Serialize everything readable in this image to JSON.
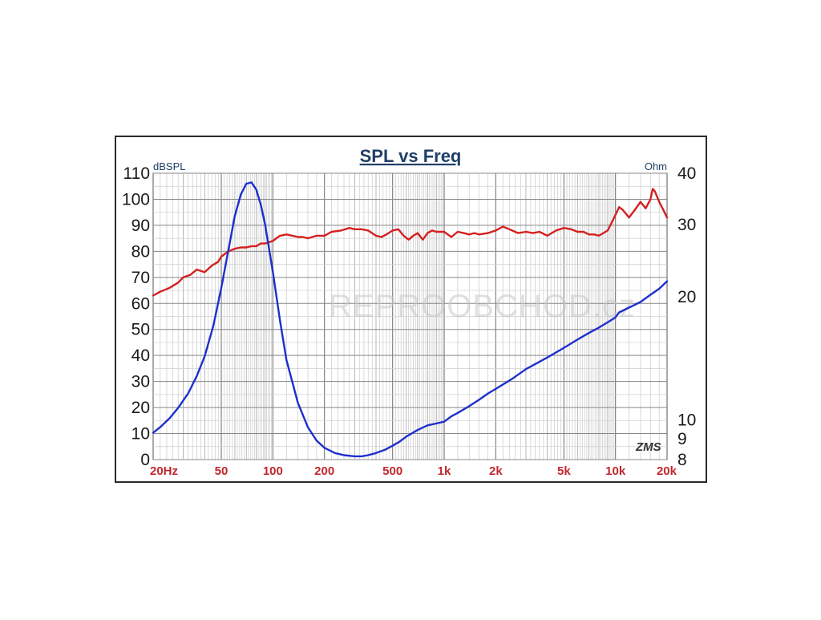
{
  "chart_data": {
    "type": "line",
    "title": "SPL vs Freq",
    "y_left_label": "dBSPL",
    "y_right_label": "Ohm",
    "x_scale": "log",
    "xlim": [
      20,
      20000
    ],
    "ylim_left": [
      0,
      110
    ],
    "ylim_right": [
      8,
      40
    ],
    "y_right_scale": "log",
    "grid": true,
    "x_ticks": [
      {
        "value": 20,
        "label": "20Hz"
      },
      {
        "value": 50,
        "label": "50"
      },
      {
        "value": 100,
        "label": "100"
      },
      {
        "value": 200,
        "label": "200"
      },
      {
        "value": 500,
        "label": "500"
      },
      {
        "value": 1000,
        "label": "1k"
      },
      {
        "value": 2000,
        "label": "2k"
      },
      {
        "value": 5000,
        "label": "5k"
      },
      {
        "value": 10000,
        "label": "10k"
      },
      {
        "value": 20000,
        "label": "20k"
      }
    ],
    "y_left_ticks": [
      0,
      10,
      20,
      30,
      40,
      50,
      60,
      70,
      80,
      90,
      100,
      110
    ],
    "y_right_ticks": [
      8,
      9,
      10,
      20,
      30,
      40
    ],
    "series": [
      {
        "axis": "left",
        "color": "#d42020",
        "x": [
          20,
          22,
          25,
          28,
          30,
          33,
          36,
          40,
          44,
          48,
          50,
          55,
          60,
          65,
          70,
          75,
          80,
          85,
          90,
          95,
          100,
          110,
          120,
          130,
          140,
          150,
          160,
          180,
          200,
          220,
          250,
          280,
          300,
          330,
          360,
          400,
          430,
          460,
          500,
          540,
          580,
          620,
          660,
          700,
          750,
          800,
          850,
          900,
          950,
          1000,
          1100,
          1200,
          1300,
          1400,
          1500,
          1600,
          1800,
          2000,
          2200,
          2400,
          2700,
          3000,
          3300,
          3600,
          4000,
          4500,
          5000,
          5500,
          6000,
          6500,
          7000,
          7500,
          8000,
          9000,
          10000,
          10500,
          11000,
          12000,
          13000,
          14000,
          15000,
          16000,
          16500,
          17000,
          18000,
          19000,
          20000
        ],
        "y": [
          63,
          64.5,
          66,
          68,
          70,
          71,
          73,
          72,
          74.5,
          76,
          78,
          80,
          81,
          81.5,
          81.5,
          82,
          82,
          83,
          83,
          83.5,
          84,
          86,
          86.5,
          86,
          85.5,
          85.5,
          85,
          86,
          86,
          87.5,
          88,
          89,
          88.5,
          88.5,
          88,
          86,
          85.5,
          86.5,
          88,
          88.5,
          86,
          84.5,
          86,
          87,
          84.5,
          87,
          88,
          87.5,
          87.5,
          87.5,
          85.5,
          87.5,
          87,
          86.5,
          87,
          86.5,
          87,
          88,
          89.5,
          88.5,
          87,
          87.5,
          87,
          87.5,
          86,
          88,
          89,
          88.5,
          87.5,
          87.5,
          86.5,
          86.5,
          86,
          88,
          94,
          97,
          96,
          93,
          96,
          99,
          96.5,
          100,
          104,
          103,
          99,
          96,
          93
        ]
      },
      {
        "axis": "right",
        "color": "#1d2fcc",
        "x": [
          20,
          22,
          25,
          28,
          32,
          36,
          40,
          45,
          50,
          55,
          60,
          65,
          70,
          75,
          80,
          85,
          90,
          100,
          110,
          120,
          140,
          160,
          180,
          200,
          230,
          260,
          300,
          330,
          360,
          400,
          450,
          500,
          550,
          600,
          700,
          800,
          900,
          1000,
          1100,
          1200,
          1400,
          1600,
          1800,
          2000,
          2500,
          3000,
          4000,
          5000,
          6000,
          7000,
          8000,
          9000,
          10000,
          10500,
          12000,
          14000,
          16000,
          18000,
          20000
        ],
        "y": [
          9.3,
          9.6,
          10.1,
          10.7,
          11.6,
          12.8,
          14.3,
          17,
          21,
          26,
          31.5,
          35.5,
          37.7,
          38,
          36.5,
          33.5,
          30,
          23,
          17.5,
          14,
          11,
          9.6,
          8.9,
          8.55,
          8.3,
          8.2,
          8.15,
          8.15,
          8.2,
          8.3,
          8.45,
          8.65,
          8.85,
          9.1,
          9.45,
          9.7,
          9.8,
          9.9,
          10.2,
          10.4,
          10.8,
          11.2,
          11.6,
          11.9,
          12.6,
          13.3,
          14.2,
          15,
          15.7,
          16.3,
          16.8,
          17.3,
          17.8,
          18.3,
          18.8,
          19.4,
          20.2,
          20.9,
          21.8
        ]
      }
    ],
    "watermark": "REPROOBCHOD.cz",
    "logo": "ZMS"
  }
}
